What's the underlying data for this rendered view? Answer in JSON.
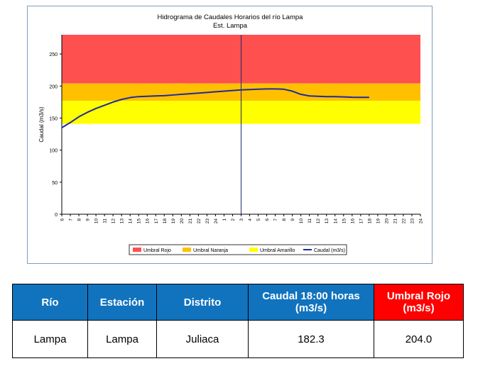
{
  "chart_data": {
    "type": "line",
    "title": "Hidrograma de Caudales Horarios del río Lampa",
    "subtitle": "Est. Lampa",
    "ylabel": "Caudal  (m3/s)",
    "xlabel": "",
    "ylim": [
      0,
      280
    ],
    "yticks": [
      0,
      50,
      100,
      150,
      200,
      250
    ],
    "x_tick_labels": [
      "6",
      "7",
      "8",
      "9",
      "10",
      "11",
      "12",
      "13",
      "14",
      "15",
      "16",
      "17",
      "18",
      "19",
      "20",
      "21",
      "22",
      "23",
      "24",
      "1",
      "2",
      "3",
      "4",
      "5",
      "6",
      "7",
      "8",
      "9",
      "10",
      "11",
      "12",
      "13",
      "14",
      "15",
      "16",
      "17",
      "18",
      "19",
      "20",
      "21",
      "22",
      "23",
      "24"
    ],
    "current_time_index": 21,
    "bands": [
      {
        "name": "Umbral Rojo",
        "from": 204,
        "to": 280,
        "color": "#ff5050"
      },
      {
        "name": "Umbral Naranja",
        "from": 177,
        "to": 204,
        "color": "#ffc000"
      },
      {
        "name": "Umbral Amarillo",
        "from": 141,
        "to": 177,
        "color": "#ffff00"
      }
    ],
    "series": [
      {
        "name": "Caudal (m3/s)",
        "color": "#1f2a9c",
        "x": [
          0,
          1,
          2,
          3,
          4,
          5,
          6,
          7,
          8,
          9,
          10,
          11,
          12,
          13,
          14,
          15,
          16,
          17,
          18,
          19,
          20,
          21,
          22,
          23,
          24,
          25,
          26,
          27,
          28,
          29,
          30,
          31,
          32,
          33,
          34,
          35,
          36
        ],
        "values": [
          135,
          143,
          152,
          159,
          165,
          170,
          175,
          179,
          182,
          183.5,
          184,
          184.5,
          185,
          186,
          187,
          188,
          189,
          190,
          191,
          192,
          193,
          194,
          194.5,
          195,
          195.5,
          195.5,
          195,
          192,
          187,
          184.5,
          184,
          183.5,
          183.5,
          183,
          182.5,
          182.3,
          182.3
        ]
      }
    ],
    "legend": [
      "Umbral Rojo",
      "Umbral Naranja",
      "Umbral Amarillo",
      "Caudal (m3/s)"
    ],
    "legend_position": "bottom"
  },
  "table": {
    "headers": [
      "Río",
      "Estación",
      "Distrito",
      "Caudal 18:00 horas (m3/s)",
      "Umbral Rojo (m3/s)"
    ],
    "row": [
      "Lampa",
      "Lampa",
      "Juliaca",
      "182.3",
      "204.0"
    ],
    "header_colors": [
      "#1173be",
      "#1173be",
      "#1173be",
      "#1173be",
      "#ff0000"
    ]
  }
}
